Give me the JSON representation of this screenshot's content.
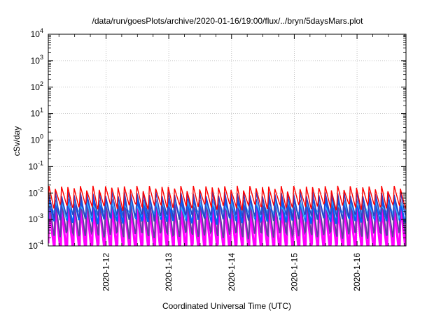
{
  "chart_data": {
    "type": "line",
    "title": "/data/run/goesPlots/archive/2020-01-16/19:00/flux/../bryn/5daysMars.plot",
    "xlabel": "Coordinated Universal Time (UTC)",
    "ylabel": "cSv/day",
    "yscale": "log",
    "ylim": [
      0.0001,
      10000
    ],
    "xlim": [
      -0.92,
      4.78
    ],
    "x_tick_labels": [
      "2020-1-12",
      "2020-1-13",
      "2020-1-14",
      "2020-1-15",
      "2020-1-16"
    ],
    "y_tick_labels": [
      {
        "base": "10",
        "exp": "-4"
      },
      {
        "base": "10",
        "exp": "-3"
      },
      {
        "base": "10",
        "exp": "-2"
      },
      {
        "base": "10",
        "exp": "-1"
      },
      {
        "base": "10",
        "exp": "0"
      },
      {
        "base": "10",
        "exp": "1"
      },
      {
        "base": "10",
        "exp": "2"
      },
      {
        "base": "10",
        "exp": "3"
      },
      {
        "base": "10",
        "exp": "4"
      }
    ],
    "grid": true,
    "sawtooth_period_days": 0.1,
    "series": [
      {
        "color": "#ff00ff",
        "peak": 0.0035,
        "trough": 8e-05,
        "width": 3.2
      },
      {
        "color": "#6040a0",
        "peak": 0.005,
        "trough": 0.00025,
        "width": 2.0
      },
      {
        "color": "#0060ff",
        "peak": 0.006,
        "trough": 0.0009,
        "width": 2.2
      },
      {
        "color": "#30b0ff",
        "peak": 0.004,
        "trough": 0.0015,
        "width": 1.6
      },
      {
        "color": "#3040c0",
        "peak": 0.009,
        "trough": 0.0012,
        "width": 1.6
      },
      {
        "color": "#ff0000",
        "peak": 0.015,
        "trough": 0.003,
        "width": 1.4
      }
    ]
  }
}
